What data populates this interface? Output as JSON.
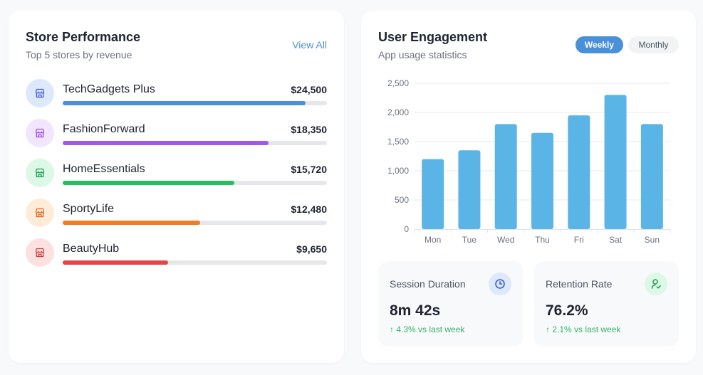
{
  "store_performance": {
    "title": "Store Performance",
    "subtitle": "Top 5 stores by revenue",
    "view_all_label": "View All",
    "stores": [
      {
        "name": "TechGadgets Plus",
        "revenue": "$24,500",
        "progress_pct": 92,
        "color": "#4a90d9",
        "icon_bg": "#dde9fb",
        "icon_color": "#3b5bd6",
        "icon": "store-icon"
      },
      {
        "name": "FashionForward",
        "revenue": "$18,350",
        "progress_pct": 78,
        "color": "#a259e8",
        "icon_bg": "#f1e6fd",
        "icon_color": "#9b4de0",
        "icon": "store-icon"
      },
      {
        "name": "HomeEssentials",
        "revenue": "$15,720",
        "progress_pct": 65,
        "color": "#22c05e",
        "icon_bg": "#dcf8e6",
        "icon_color": "#1f9a4e",
        "icon": "store-icon"
      },
      {
        "name": "SportyLife",
        "revenue": "$12,480",
        "progress_pct": 52,
        "color": "#f47b20",
        "icon_bg": "#feecd9",
        "icon_color": "#e0641c",
        "icon": "store-icon"
      },
      {
        "name": "BeautyHub",
        "revenue": "$9,650",
        "progress_pct": 40,
        "color": "#e94444",
        "icon_bg": "#fde0e0",
        "icon_color": "#d23838",
        "icon": "store-icon"
      }
    ]
  },
  "user_engagement": {
    "title": "User Engagement",
    "subtitle": "App usage statistics",
    "toggle": {
      "weekly_label": "Weekly",
      "monthly_label": "Monthly",
      "selected": "Weekly"
    },
    "stats": [
      {
        "label": "Session Duration",
        "value": "8m 42s",
        "change": "4.3% vs last week",
        "arrow": "↑",
        "icon": "clock-icon",
        "icon_bg": "#dde9fb",
        "icon_color": "#3b5bd6"
      },
      {
        "label": "Retention Rate",
        "value": "76.2%",
        "change": "2.1% vs last week",
        "arrow": "↑",
        "icon": "user-check-icon",
        "icon_bg": "#dcf8e6",
        "icon_color": "#1f9a4e"
      }
    ]
  },
  "chart_data": {
    "type": "bar",
    "title": "",
    "xlabel": "",
    "ylabel": "",
    "categories": [
      "Mon",
      "Tue",
      "Wed",
      "Thu",
      "Fri",
      "Sat",
      "Sun"
    ],
    "values": [
      1200,
      1350,
      1800,
      1650,
      1950,
      2300,
      1800
    ],
    "ylim": [
      0,
      2500
    ],
    "yticks": [
      0,
      500,
      1000,
      1500,
      2000,
      2500
    ],
    "ytick_labels": [
      "0",
      "500",
      "1,000",
      "1,500",
      "2,000",
      "2,500"
    ],
    "grid": true,
    "bar_color": "#5ab4e5"
  }
}
